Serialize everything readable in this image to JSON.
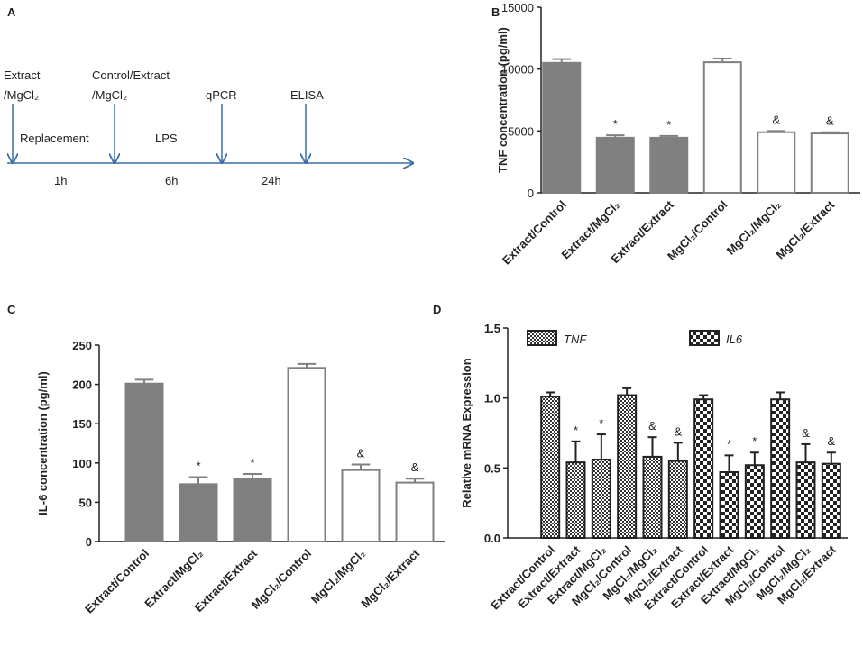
{
  "chart_data": [
    {
      "type": "timeline",
      "panel": "A",
      "events": [
        [
          "Extract",
          "/MgCl₂"
        ],
        [
          "Control/Extract",
          "/MgCl₂"
        ],
        [
          "qPCR"
        ],
        [
          "ELISA"
        ]
      ],
      "phases": [
        "Replacement",
        "LPS"
      ],
      "durations": [
        "1h",
        "6h",
        "24h"
      ]
    },
    {
      "type": "bar",
      "panel": "B",
      "ylabel": "TNF concentration (pg/ml)",
      "categories": [
        "Extract/Control",
        "Extract/MgCl₂",
        "Extract/Extract",
        "MgCl₂/Control",
        "MgCl₂/MgCl₂",
        "MgCl₂/Extract"
      ],
      "series": [
        {
          "values": [
            10500,
            4450,
            4450,
            10550,
            4900,
            4800
          ],
          "errors": [
            300,
            200,
            150,
            300,
            100,
            100
          ],
          "colors": [
            "#808080",
            "#808080",
            "#808080",
            "#ffffff",
            "#ffffff",
            "#ffffff"
          ],
          "edge_color": "#808080"
        }
      ],
      "annotations": [
        null,
        "*",
        "*",
        null,
        "&",
        "&"
      ],
      "ylim": [
        0,
        15000
      ],
      "yticks": [
        0,
        5000,
        10000,
        15000
      ]
    },
    {
      "type": "bar",
      "panel": "C",
      "ylabel": "IL-6 concentration (pg/ml)",
      "categories": [
        "Extract/Control",
        "Extract/MgCl₂",
        "Extract/Extract",
        "MgCl₂/Control",
        "MgCl₂/MgCl₂",
        "MgCl₂/Extract"
      ],
      "series": [
        {
          "values": [
            201,
            73,
            80,
            221,
            91,
            75
          ],
          "errors": [
            5,
            9,
            6,
            5,
            7,
            5
          ],
          "colors": [
            "#808080",
            "#808080",
            "#808080",
            "#ffffff",
            "#ffffff",
            "#ffffff"
          ],
          "edge_color": "#808080"
        }
      ],
      "annotations": [
        null,
        "*",
        "*",
        null,
        "&",
        "&"
      ],
      "ylim": [
        0,
        250
      ],
      "yticks": [
        0,
        50,
        100,
        150,
        200,
        250
      ]
    },
    {
      "type": "bar",
      "panel": "D",
      "ylabel": "Relative  mRNA Expression",
      "categories": [
        "Extract/Control",
        "Extract/Extract",
        "Extract/MgCl₂",
        "MgCl₂/Control",
        "MgCl₂/MgCl₂",
        "MgCl₂/Extract",
        "Extract/Control",
        "Extract/Extract",
        "Extract/MgCl₂",
        "MgCl₂/Control",
        "MgCl₂/MgCl₂",
        "MgCl₂/Extract"
      ],
      "series": [
        {
          "name": "TNF",
          "hatch": "fine",
          "edge_color": "#222222",
          "values": [
            1.01,
            0.54,
            0.56,
            1.02,
            0.58,
            0.55,
            null,
            null,
            null,
            null,
            null,
            null
          ],
          "errors": [
            0.03,
            0.15,
            0.18,
            0.05,
            0.14,
            0.13,
            null,
            null,
            null,
            null,
            null,
            null
          ]
        },
        {
          "name": "IL6",
          "hatch": "coarse",
          "edge_color": "#222222",
          "values": [
            null,
            null,
            null,
            null,
            null,
            null,
            0.99,
            0.47,
            0.52,
            0.99,
            0.54,
            0.53
          ],
          "errors": [
            null,
            null,
            null,
            null,
            null,
            null,
            0.03,
            0.12,
            0.09,
            0.05,
            0.13,
            0.08
          ]
        }
      ],
      "annotations": [
        null,
        "*",
        "*",
        null,
        "&",
        "&",
        null,
        "*",
        "*",
        null,
        "&",
        "&"
      ],
      "ylim": [
        0,
        1.5
      ],
      "yticks": [
        {
          "value": 0,
          "label": "0.0"
        },
        {
          "value": 0.5,
          "label": "0.5"
        },
        {
          "value": 1,
          "label": "1.0"
        },
        {
          "value": 1.5,
          "label": "1.5"
        }
      ]
    }
  ]
}
